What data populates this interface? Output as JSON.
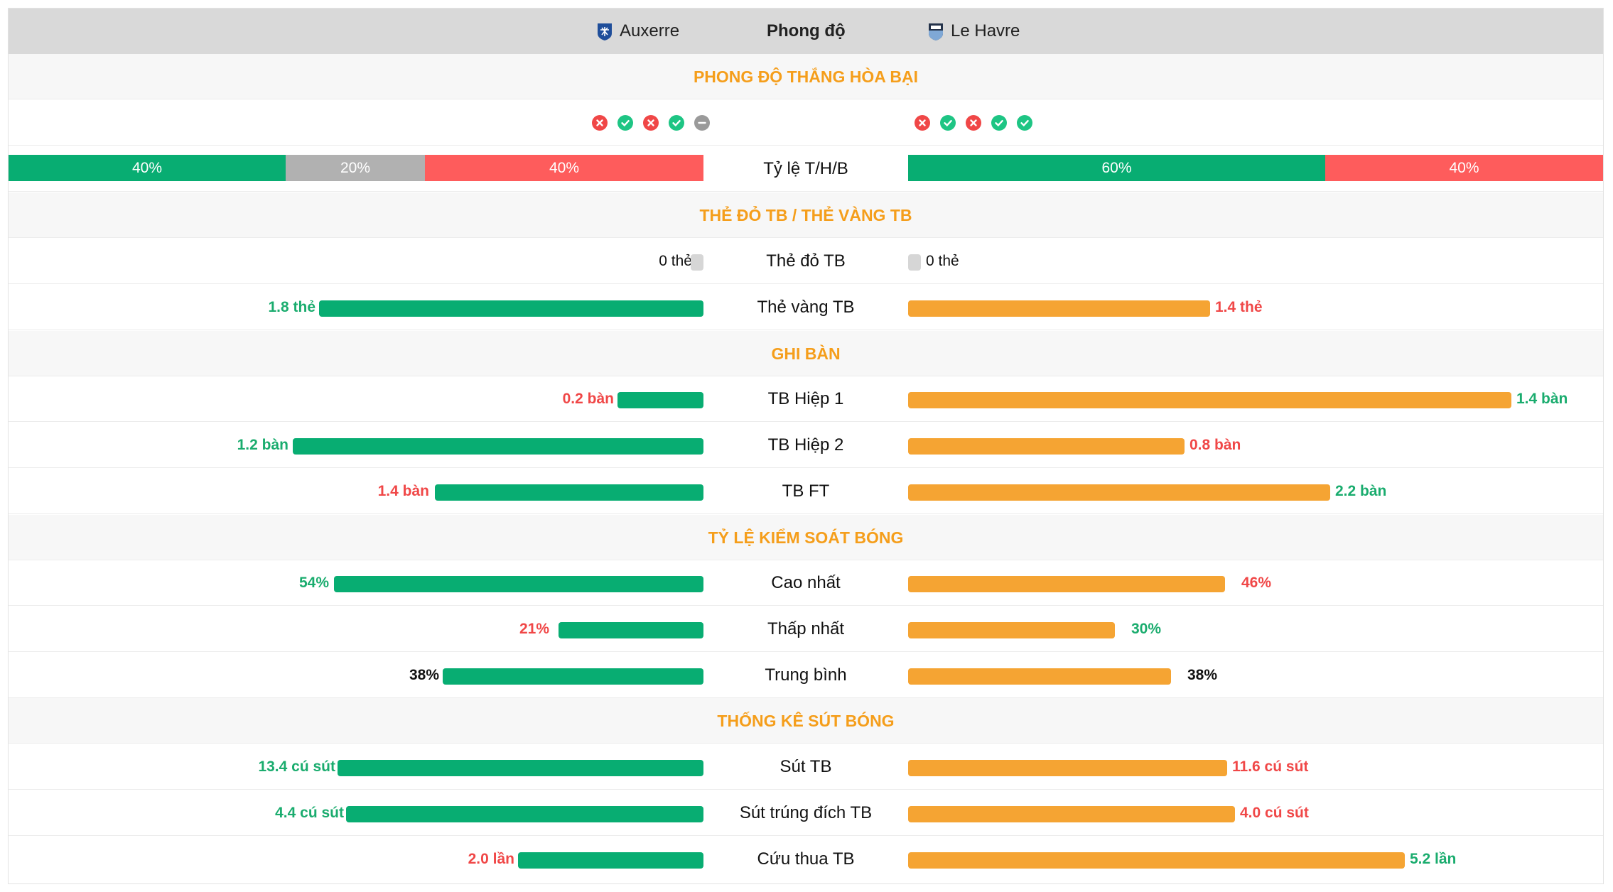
{
  "header": {
    "home_team": "Auxerre",
    "title": "Phong độ",
    "away_team": "Le Havre"
  },
  "form": {
    "section_title": "PHONG ĐỘ THẮNG HÒA BẠI",
    "home_results": [
      "loss",
      "win",
      "loss",
      "win",
      "draw"
    ],
    "away_results": [
      "loss",
      "win",
      "loss",
      "win",
      "win"
    ],
    "ratio_label": "Tỷ lệ T/H/B",
    "home_ratio": {
      "win": "40%",
      "draw": "20%",
      "loss": "40%"
    },
    "away_ratio": {
      "win": "60%",
      "loss": "40%"
    }
  },
  "cards": {
    "section_title": "THẺ ĐỎ TB / THẺ VÀNG TB",
    "red": {
      "label": "Thẻ đỏ TB",
      "home": "0 thẻ",
      "away": "0 thẻ"
    },
    "yellow": {
      "label": "Thẻ vàng TB",
      "home": "1.8 thẻ",
      "away": "1.4 thẻ"
    }
  },
  "goals": {
    "section_title": "GHI BÀN",
    "h1": {
      "label": "TB Hiệp 1",
      "home": "0.2 bàn",
      "away": "1.4 bàn"
    },
    "h2": {
      "label": "TB Hiệp 2",
      "home": "1.2 bàn",
      "away": "0.8 bàn"
    },
    "ft": {
      "label": "TB FT",
      "home": "1.4 bàn",
      "away": "2.2 bàn"
    }
  },
  "possession": {
    "section_title": "TỶ LỆ KIỂM SOÁT BÓNG",
    "max": {
      "label": "Cao nhất",
      "home": "54%",
      "away": "46%"
    },
    "min": {
      "label": "Thấp nhất",
      "home": "21%",
      "away": "30%"
    },
    "avg": {
      "label": "Trung bình",
      "home": "38%",
      "away": "38%"
    }
  },
  "shots": {
    "section_title": "THỐNG KÊ SÚT BÓNG",
    "total": {
      "label": "Sút TB",
      "home": "13.4 cú sút",
      "away": "11.6 cú sút"
    },
    "on_target": {
      "label": "Sút trúng đích TB",
      "home": "4.4 cú sút",
      "away": "4.0 cú sút"
    },
    "saves": {
      "label": "Cứu thua TB",
      "home": "2.0 lần",
      "away": "5.2 lần"
    }
  },
  "colors": {
    "accent": "#f59e1b",
    "home_bar": "#08ad72",
    "away_bar": "#f5a433",
    "win": "#1ec584",
    "loss": "#f04747",
    "draw": "#9a9a9a"
  },
  "icons": {
    "win": "check-circle-icon",
    "loss": "x-circle-icon",
    "draw": "minus-circle-icon"
  }
}
